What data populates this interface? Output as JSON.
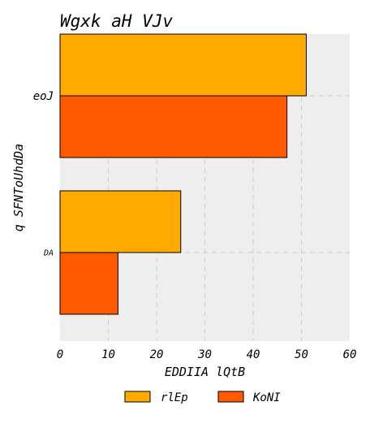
{
  "chart_data": {
    "type": "bar",
    "orientation": "horizontal",
    "title": "Wgxk aH VJv",
    "xlabel": "EDDIIA lQtB",
    "ylabel": "q SFNToUhdDa",
    "categories": [
      "eoJ",
      "DA"
    ],
    "series": [
      {
        "name": "rlEp",
        "values": [
          51,
          25
        ],
        "color": "#FFAA00"
      },
      {
        "name": "KoNI",
        "values": [
          47,
          12
        ],
        "color": "#FF5A00"
      }
    ],
    "xlim": [
      0,
      60
    ],
    "xticks": [
      0,
      10,
      20,
      30,
      40,
      50,
      60
    ],
    "grid": true,
    "legend": "bottom",
    "background": "#EEEEEE"
  }
}
